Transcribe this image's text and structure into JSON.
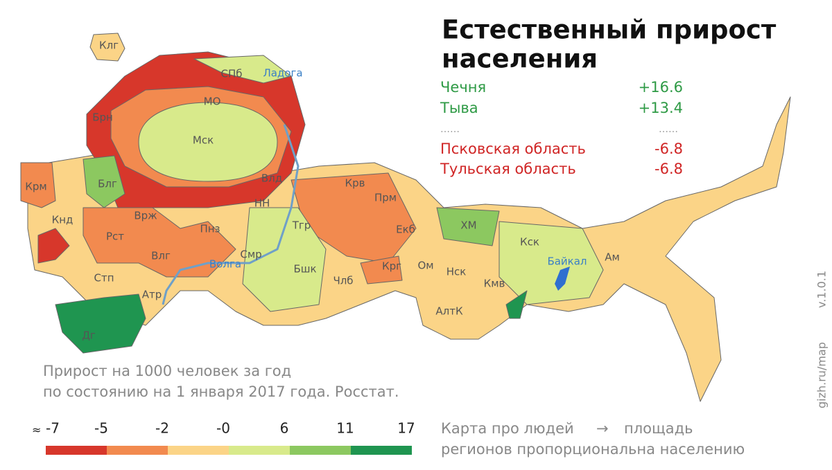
{
  "title_lines": [
    "Естественный прирост",
    "населения"
  ],
  "extremes": [
    {
      "name": "Чечня",
      "value": {
        "value": 16.6,
        "label": "+16.6"
      }
    },
    {
      "name": "Тыва",
      "value": {
        "value": 13.4,
        "label": "+13.4"
      }
    },
    {
      "name": "Псковская область",
      "value": {
        "value": -6.8,
        "label": "-6.8"
      }
    },
    {
      "name": "Тульская область",
      "value": {
        "value": -6.8,
        "label": "-6.8"
      }
    }
  ],
  "note": [
    "Прирост на 1000 человек за год",
    "по состоянию на 1 января 2017 года. Росстат."
  ],
  "legend": {
    "prefix": "≈",
    "ticks": [
      -7,
      -5,
      -2,
      {
        "value": 0,
        "label": "-0"
      },
      6,
      11,
      17
    ],
    "colors": [
      "#d7372b",
      "#f28a4f",
      "#fbd487",
      "#d8ea8b",
      "#8cc860",
      "#1f9550"
    ]
  },
  "tagline": [
    "Карта про людей",
    "площадь",
    "регионов пропорциональна населению"
  ],
  "site": "gizh.ru/map",
  "version": "v.1.0.1",
  "regions": [
    "Клг",
    "СПб",
    "Ладога",
    "МО",
    "Брн",
    "Мск",
    "Крм",
    "Блг",
    "Влд",
    "Крв",
    "НН",
    "Прм",
    "Кнд",
    "Врж",
    "Пнз",
    "ХМ",
    "Рст",
    "Влг",
    "Смр",
    "Тгр",
    "Екб",
    "Кск",
    "Стп",
    "Волга",
    "Бшк",
    "Крг",
    "Ом",
    "Байкал",
    "Ам",
    "Атр",
    "Члб",
    "Нск",
    "Кмв",
    "АлтК",
    "Дг"
  ]
}
